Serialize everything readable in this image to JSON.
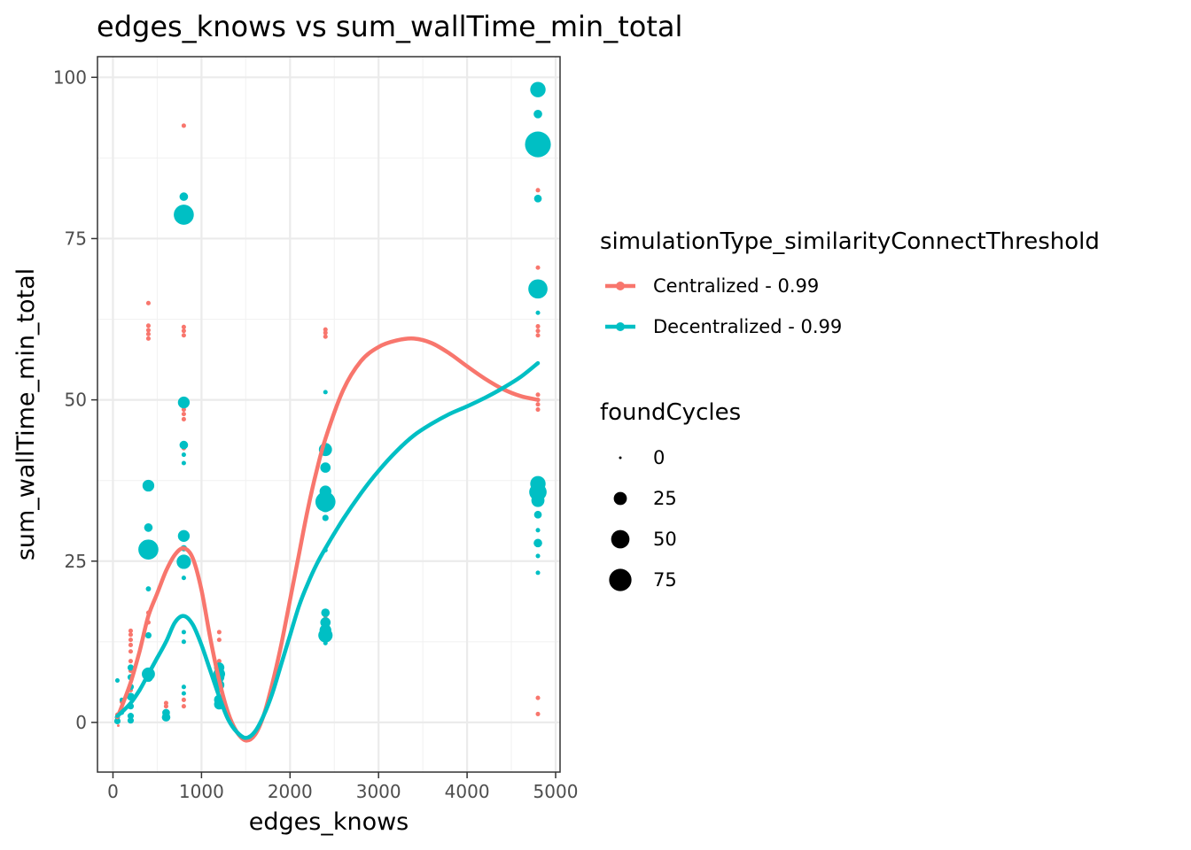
{
  "chart_data": {
    "type": "scatter",
    "title": "edges_knows  vs  sum_wallTime_min_total",
    "xlabel": "edges_knows",
    "ylabel": "sum_wallTime_min_total",
    "xlim": [
      -175,
      5050
    ],
    "ylim": [
      -7.7,
      103.2
    ],
    "x_ticks": [
      0,
      1000,
      2000,
      3000,
      4000,
      5000
    ],
    "y_ticks": [
      0,
      25,
      50,
      75,
      100
    ],
    "x_tick_labels": [
      "0",
      "1000",
      "2000",
      "3000",
      "4000",
      "5000"
    ],
    "y_tick_labels": [
      "0",
      "25",
      "50",
      "75",
      "100"
    ],
    "grid": true,
    "legend_position": "right",
    "color_legend": {
      "title": "simulationType_similarityConnectThreshold",
      "entries": [
        {
          "label": "Centralized - 0.99",
          "color": "#F8766D"
        },
        {
          "label": "Decentralized - 0.99",
          "color": "#00BFC4"
        }
      ]
    },
    "size_legend": {
      "title": "foundCycles",
      "entries": [
        {
          "label": "0",
          "value": 0
        },
        {
          "label": "25",
          "value": 25
        },
        {
          "label": "50",
          "value": 50
        },
        {
          "label": "75",
          "value": 75
        }
      ]
    },
    "series": [
      {
        "name": "Centralized - 0.99",
        "color": "#F8766D",
        "points": [
          {
            "x": 50,
            "y": 0.5,
            "size": 2
          },
          {
            "x": 50,
            "y": 1.2,
            "size": 2
          },
          {
            "x": 60,
            "y": -0.5,
            "size": 0
          },
          {
            "x": 100,
            "y": 2.0,
            "size": 2
          },
          {
            "x": 100,
            "y": 3.2,
            "size": 2
          },
          {
            "x": 200,
            "y": 2.5,
            "size": 2
          },
          {
            "x": 200,
            "y": 5.0,
            "size": 2
          },
          {
            "x": 200,
            "y": 8.0,
            "size": 2
          },
          {
            "x": 200,
            "y": 9.5,
            "size": 2
          },
          {
            "x": 200,
            "y": 11.0,
            "size": 2
          },
          {
            "x": 200,
            "y": 12.0,
            "size": 2
          },
          {
            "x": 200,
            "y": 12.8,
            "size": 2
          },
          {
            "x": 200,
            "y": 13.6,
            "size": 2
          },
          {
            "x": 200,
            "y": 14.2,
            "size": 2
          },
          {
            "x": 400,
            "y": 15.5,
            "size": 2
          },
          {
            "x": 400,
            "y": 17.0,
            "size": 2
          },
          {
            "x": 400,
            "y": 59.5,
            "size": 2
          },
          {
            "x": 400,
            "y": 60.2,
            "size": 2
          },
          {
            "x": 400,
            "y": 60.8,
            "size": 2
          },
          {
            "x": 400,
            "y": 61.5,
            "size": 2
          },
          {
            "x": 400,
            "y": 65.0,
            "size": 2
          },
          {
            "x": 600,
            "y": 2.5,
            "size": 2
          },
          {
            "x": 600,
            "y": 3.0,
            "size": 2
          },
          {
            "x": 800,
            "y": 2.5,
            "size": 2
          },
          {
            "x": 800,
            "y": 3.5,
            "size": 2
          },
          {
            "x": 800,
            "y": 25.0,
            "size": 2
          },
          {
            "x": 800,
            "y": 27.0,
            "size": 2
          },
          {
            "x": 800,
            "y": 42.5,
            "size": 2
          },
          {
            "x": 800,
            "y": 47.0,
            "size": 2
          },
          {
            "x": 800,
            "y": 47.8,
            "size": 2
          },
          {
            "x": 800,
            "y": 48.5,
            "size": 2
          },
          {
            "x": 800,
            "y": 49.2,
            "size": 2
          },
          {
            "x": 800,
            "y": 50.0,
            "size": 2
          },
          {
            "x": 800,
            "y": 60.0,
            "size": 2
          },
          {
            "x": 800,
            "y": 60.7,
            "size": 2
          },
          {
            "x": 800,
            "y": 61.3,
            "size": 2
          },
          {
            "x": 800,
            "y": 92.5,
            "size": 2
          },
          {
            "x": 1200,
            "y": 5.0,
            "size": 2
          },
          {
            "x": 1200,
            "y": 8.5,
            "size": 2
          },
          {
            "x": 1200,
            "y": 9.5,
            "size": 2
          },
          {
            "x": 1200,
            "y": 12.8,
            "size": 2
          },
          {
            "x": 1200,
            "y": 14.0,
            "size": 2
          },
          {
            "x": 2400,
            "y": 13.0,
            "size": 2
          },
          {
            "x": 2400,
            "y": 16.5,
            "size": 2
          },
          {
            "x": 2400,
            "y": 17.0,
            "size": 2
          },
          {
            "x": 2400,
            "y": 59.8,
            "size": 2
          },
          {
            "x": 2400,
            "y": 60.4,
            "size": 2
          },
          {
            "x": 2400,
            "y": 60.9,
            "size": 2
          },
          {
            "x": 4800,
            "y": 1.3,
            "size": 2
          },
          {
            "x": 4800,
            "y": 3.8,
            "size": 2
          },
          {
            "x": 4800,
            "y": 48.5,
            "size": 2
          },
          {
            "x": 4800,
            "y": 49.3,
            "size": 2
          },
          {
            "x": 4800,
            "y": 50.0,
            "size": 2
          },
          {
            "x": 4800,
            "y": 50.8,
            "size": 2
          },
          {
            "x": 4800,
            "y": 60.0,
            "size": 2
          },
          {
            "x": 4800,
            "y": 60.7,
            "size": 2
          },
          {
            "x": 4800,
            "y": 61.4,
            "size": 2
          },
          {
            "x": 4800,
            "y": 70.5,
            "size": 2
          },
          {
            "x": 4800,
            "y": 82.5,
            "size": 2
          }
        ],
        "smooth": [
          [
            50,
            0.8
          ],
          [
            100,
            2.5
          ],
          [
            200,
            6.2
          ],
          [
            300,
            11.0
          ],
          [
            400,
            16.5
          ],
          [
            500,
            20.0
          ],
          [
            600,
            23.5
          ],
          [
            700,
            26.0
          ],
          [
            800,
            27.0
          ],
          [
            900,
            25.5
          ],
          [
            1000,
            20.5
          ],
          [
            1100,
            13.0
          ],
          [
            1200,
            6.5
          ],
          [
            1300,
            1.5
          ],
          [
            1400,
            -1.5
          ],
          [
            1500,
            -2.8
          ],
          [
            1600,
            -2.0
          ],
          [
            1700,
            1.0
          ],
          [
            1800,
            6.0
          ],
          [
            1900,
            12.0
          ],
          [
            2000,
            19.0
          ],
          [
            2100,
            26.0
          ],
          [
            2200,
            33.0
          ],
          [
            2300,
            39.0
          ],
          [
            2400,
            44.0
          ],
          [
            2600,
            51.5
          ],
          [
            2800,
            56.0
          ],
          [
            3000,
            58.2
          ],
          [
            3200,
            59.2
          ],
          [
            3400,
            59.5
          ],
          [
            3600,
            58.8
          ],
          [
            3800,
            57.2
          ],
          [
            4000,
            55.2
          ],
          [
            4200,
            53.3
          ],
          [
            4400,
            51.7
          ],
          [
            4600,
            50.6
          ],
          [
            4800,
            50.0
          ]
        ]
      },
      {
        "name": "Decentralized - 0.99",
        "color": "#00BFC4",
        "points": [
          {
            "x": 50,
            "y": 0.2,
            "size": 5
          },
          {
            "x": 50,
            "y": 0.8,
            "size": 3
          },
          {
            "x": 50,
            "y": 6.5,
            "size": 2
          },
          {
            "x": 100,
            "y": 1.5,
            "size": 2
          },
          {
            "x": 100,
            "y": 3.5,
            "size": 2
          },
          {
            "x": 200,
            "y": 0.3,
            "size": 5
          },
          {
            "x": 200,
            "y": 1.0,
            "size": 5
          },
          {
            "x": 200,
            "y": 2.5,
            "size": 5
          },
          {
            "x": 200,
            "y": 4.0,
            "size": 8
          },
          {
            "x": 200,
            "y": 5.5,
            "size": 5
          },
          {
            "x": 200,
            "y": 7.0,
            "size": 5
          },
          {
            "x": 200,
            "y": 8.5,
            "size": 5
          },
          {
            "x": 400,
            "y": 7.0,
            "size": 12
          },
          {
            "x": 400,
            "y": 7.5,
            "size": 25
          },
          {
            "x": 400,
            "y": 13.5,
            "size": 5
          },
          {
            "x": 400,
            "y": 20.7,
            "size": 3
          },
          {
            "x": 400,
            "y": 26.8,
            "size": 60
          },
          {
            "x": 400,
            "y": 30.2,
            "size": 10
          },
          {
            "x": 400,
            "y": 36.7,
            "size": 20
          },
          {
            "x": 600,
            "y": 0.8,
            "size": 10
          },
          {
            "x": 600,
            "y": 1.5,
            "size": 8
          },
          {
            "x": 800,
            "y": 4.5,
            "size": 2
          },
          {
            "x": 800,
            "y": 5.5,
            "size": 2
          },
          {
            "x": 800,
            "y": 12.5,
            "size": 2
          },
          {
            "x": 800,
            "y": 14.0,
            "size": 2
          },
          {
            "x": 800,
            "y": 22.4,
            "size": 2
          },
          {
            "x": 800,
            "y": 24.9,
            "size": 30
          },
          {
            "x": 800,
            "y": 25.5,
            "size": 5
          },
          {
            "x": 800,
            "y": 27.0,
            "size": 5
          },
          {
            "x": 800,
            "y": 28.9,
            "size": 20
          },
          {
            "x": 800,
            "y": 40.2,
            "size": 2
          },
          {
            "x": 800,
            "y": 41.5,
            "size": 2
          },
          {
            "x": 800,
            "y": 43.0,
            "size": 10
          },
          {
            "x": 800,
            "y": 49.6,
            "size": 20
          },
          {
            "x": 800,
            "y": 78.7,
            "size": 60
          },
          {
            "x": 800,
            "y": 81.5,
            "size": 10
          },
          {
            "x": 1200,
            "y": 2.8,
            "size": 15
          },
          {
            "x": 1200,
            "y": 3.5,
            "size": 15
          },
          {
            "x": 1200,
            "y": 5.8,
            "size": 15
          },
          {
            "x": 1200,
            "y": 7.0,
            "size": 15
          },
          {
            "x": 1200,
            "y": 7.5,
            "size": 20
          },
          {
            "x": 1200,
            "y": 8.5,
            "size": 15
          },
          {
            "x": 2400,
            "y": 12.3,
            "size": 2
          },
          {
            "x": 2400,
            "y": 13.5,
            "size": 30
          },
          {
            "x": 2400,
            "y": 14.3,
            "size": 20
          },
          {
            "x": 2400,
            "y": 15.5,
            "size": 15
          },
          {
            "x": 2400,
            "y": 17.0,
            "size": 10
          },
          {
            "x": 2400,
            "y": 26.7,
            "size": 2
          },
          {
            "x": 2400,
            "y": 31.7,
            "size": 5
          },
          {
            "x": 2400,
            "y": 33.5,
            "size": 20
          },
          {
            "x": 2400,
            "y": 34.2,
            "size": 60
          },
          {
            "x": 2400,
            "y": 35.8,
            "size": 20
          },
          {
            "x": 2400,
            "y": 39.5,
            "size": 15
          },
          {
            "x": 2400,
            "y": 42.3,
            "size": 25
          },
          {
            "x": 2400,
            "y": 51.2,
            "size": 2
          },
          {
            "x": 4800,
            "y": 23.2,
            "size": 2
          },
          {
            "x": 4800,
            "y": 25.8,
            "size": 2
          },
          {
            "x": 4800,
            "y": 27.8,
            "size": 10
          },
          {
            "x": 4800,
            "y": 29.8,
            "size": 2
          },
          {
            "x": 4800,
            "y": 32.2,
            "size": 8
          },
          {
            "x": 4800,
            "y": 34.4,
            "size": 25
          },
          {
            "x": 4800,
            "y": 35.7,
            "size": 45
          },
          {
            "x": 4800,
            "y": 37.0,
            "size": 35
          },
          {
            "x": 4800,
            "y": 63.5,
            "size": 2
          },
          {
            "x": 4800,
            "y": 67.2,
            "size": 55
          },
          {
            "x": 4800,
            "y": 81.2,
            "size": 8
          },
          {
            "x": 4800,
            "y": 89.6,
            "size": 100
          },
          {
            "x": 4800,
            "y": 94.3,
            "size": 10
          },
          {
            "x": 4800,
            "y": 98.1,
            "size": 35
          }
        ],
        "smooth": [
          [
            50,
            1.0
          ],
          [
            100,
            1.6
          ],
          [
            200,
            3.0
          ],
          [
            300,
            5.0
          ],
          [
            400,
            7.5
          ],
          [
            500,
            10.0
          ],
          [
            600,
            12.5
          ],
          [
            700,
            15.5
          ],
          [
            800,
            16.5
          ],
          [
            900,
            15.2
          ],
          [
            1000,
            12.0
          ],
          [
            1100,
            8.0
          ],
          [
            1200,
            4.0
          ],
          [
            1300,
            0.5
          ],
          [
            1400,
            -1.5
          ],
          [
            1500,
            -2.4
          ],
          [
            1600,
            -1.5
          ],
          [
            1700,
            1.0
          ],
          [
            1800,
            4.5
          ],
          [
            1900,
            9.0
          ],
          [
            2000,
            13.5
          ],
          [
            2100,
            18.0
          ],
          [
            2200,
            21.5
          ],
          [
            2300,
            24.5
          ],
          [
            2400,
            27.0
          ],
          [
            2600,
            31.5
          ],
          [
            2800,
            35.5
          ],
          [
            3000,
            39.0
          ],
          [
            3200,
            42.0
          ],
          [
            3400,
            44.5
          ],
          [
            3600,
            46.3
          ],
          [
            3800,
            47.8
          ],
          [
            4000,
            49.0
          ],
          [
            4200,
            50.3
          ],
          [
            4400,
            51.8
          ],
          [
            4600,
            53.5
          ],
          [
            4800,
            55.7
          ]
        ]
      }
    ]
  }
}
